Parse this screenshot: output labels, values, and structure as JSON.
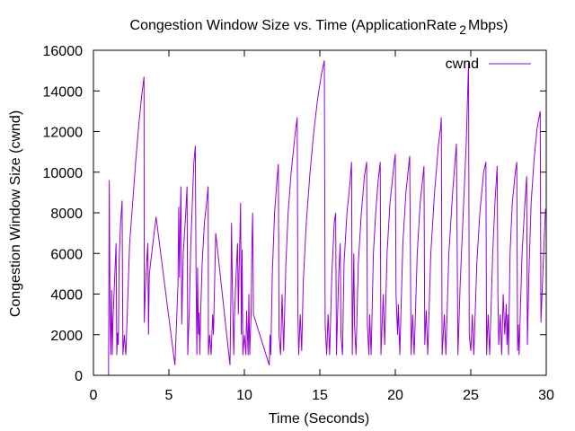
{
  "chart_data": {
    "type": "line",
    "title": "Congestion Window Size vs. Time (ApplicationRate",
    "title_subscript": "2",
    "title_suffix": "Mbps)",
    "xlabel": "Time (Seconds)",
    "ylabel": "Congestion Window Size (cwnd)",
    "xlim": [
      0,
      30
    ],
    "ylim": [
      0,
      16000
    ],
    "x_ticks": [
      "0",
      "5",
      "10",
      "15",
      "20",
      "25",
      "30"
    ],
    "y_ticks": [
      "0",
      "2000",
      "4000",
      "6000",
      "8000",
      "10000",
      "12000",
      "14000",
      "16000"
    ],
    "grid": false,
    "legend_position": "top-right",
    "series": [
      {
        "name": "cwnd",
        "color": "#9400d3",
        "points": [
          [
            1.0,
            0
          ],
          [
            1.05,
            9600
          ],
          [
            1.1,
            2900
          ],
          [
            1.15,
            1000
          ],
          [
            1.2,
            4200
          ],
          [
            1.25,
            1000
          ],
          [
            1.3,
            2800
          ],
          [
            1.5,
            6500
          ],
          [
            1.55,
            1000
          ],
          [
            1.6,
            2100
          ],
          [
            1.65,
            1500
          ],
          [
            1.7,
            5600
          ],
          [
            1.8,
            7500
          ],
          [
            1.9,
            8600
          ],
          [
            1.95,
            1000
          ],
          [
            2.05,
            2000
          ],
          [
            2.15,
            1000
          ],
          [
            2.4,
            6500
          ],
          [
            2.65,
            9000
          ],
          [
            2.8,
            10500
          ],
          [
            3.0,
            12300
          ],
          [
            3.2,
            13800
          ],
          [
            3.35,
            14700
          ],
          [
            3.37,
            2600
          ],
          [
            3.45,
            4500
          ],
          [
            3.6,
            6500
          ],
          [
            3.65,
            2000
          ],
          [
            3.7,
            5000
          ],
          [
            4.15,
            7800
          ],
          [
            5.4,
            500
          ],
          [
            5.6,
            4500
          ],
          [
            5.65,
            8300
          ],
          [
            5.7,
            4800
          ],
          [
            5.75,
            7500
          ],
          [
            5.8,
            9300
          ],
          [
            5.85,
            2500
          ],
          [
            5.95,
            6000
          ],
          [
            6.1,
            7800
          ],
          [
            6.2,
            9300
          ],
          [
            6.25,
            1000
          ],
          [
            6.35,
            3200
          ],
          [
            6.45,
            6500
          ],
          [
            6.55,
            8400
          ],
          [
            6.65,
            10400
          ],
          [
            6.75,
            11300
          ],
          [
            6.8,
            5000
          ],
          [
            6.85,
            1000
          ],
          [
            6.9,
            5300
          ],
          [
            6.95,
            2000
          ],
          [
            7.0,
            3100
          ],
          [
            7.05,
            1000
          ],
          [
            7.1,
            3000
          ],
          [
            7.2,
            5500
          ],
          [
            7.35,
            7500
          ],
          [
            7.5,
            8500
          ],
          [
            7.6,
            9300
          ],
          [
            7.62,
            1000
          ],
          [
            7.7,
            2000
          ],
          [
            7.8,
            1000
          ],
          [
            7.9,
            3000
          ],
          [
            7.95,
            2000
          ],
          [
            8.1,
            7000
          ],
          [
            9.05,
            500
          ],
          [
            9.1,
            3500
          ],
          [
            9.15,
            7500
          ],
          [
            9.2,
            4500
          ],
          [
            9.3,
            1000
          ],
          [
            9.35,
            3000
          ],
          [
            9.45,
            5000
          ],
          [
            9.55,
            6500
          ],
          [
            9.6,
            3000
          ],
          [
            9.65,
            5000
          ],
          [
            9.75,
            8500
          ],
          [
            9.8,
            2000
          ],
          [
            9.85,
            6200
          ],
          [
            9.9,
            1000
          ],
          [
            10.0,
            2000
          ],
          [
            10.1,
            1000
          ],
          [
            10.15,
            3200
          ],
          [
            10.25,
            1000
          ],
          [
            10.3,
            4000
          ],
          [
            10.35,
            1000
          ],
          [
            10.45,
            3200
          ],
          [
            10.5,
            6500
          ],
          [
            10.55,
            8000
          ],
          [
            10.6,
            3000
          ],
          [
            11.65,
            500
          ],
          [
            11.7,
            2000
          ],
          [
            11.75,
            1000
          ],
          [
            11.85,
            5000
          ],
          [
            12.0,
            8000
          ],
          [
            12.15,
            9500
          ],
          [
            12.25,
            10400
          ],
          [
            12.3,
            2000
          ],
          [
            12.4,
            1000
          ],
          [
            12.5,
            4000
          ],
          [
            12.6,
            1200
          ],
          [
            12.75,
            5500
          ],
          [
            12.9,
            8000
          ],
          [
            13.1,
            10000
          ],
          [
            13.35,
            11800
          ],
          [
            13.5,
            12700
          ],
          [
            13.55,
            3000
          ],
          [
            13.6,
            1000
          ],
          [
            13.7,
            3000
          ],
          [
            13.8,
            1200
          ],
          [
            13.9,
            4500
          ],
          [
            14.1,
            7500
          ],
          [
            14.35,
            10000
          ],
          [
            14.6,
            12000
          ],
          [
            14.85,
            13600
          ],
          [
            15.1,
            14800
          ],
          [
            15.3,
            15500
          ],
          [
            15.35,
            2500
          ],
          [
            15.45,
            1000
          ],
          [
            15.55,
            3000
          ],
          [
            15.65,
            1000
          ],
          [
            15.8,
            5000
          ],
          [
            15.95,
            7500
          ],
          [
            16.05,
            8000
          ],
          [
            16.1,
            1000
          ],
          [
            16.25,
            5000
          ],
          [
            16.35,
            6500
          ],
          [
            16.4,
            2000
          ],
          [
            16.5,
            1000
          ],
          [
            16.6,
            5500
          ],
          [
            16.8,
            8000
          ],
          [
            17.0,
            9500
          ],
          [
            17.1,
            10500
          ],
          [
            17.15,
            1000
          ],
          [
            17.25,
            6000
          ],
          [
            17.3,
            2500
          ],
          [
            17.4,
            1000
          ],
          [
            17.55,
            5500
          ],
          [
            17.75,
            8000
          ],
          [
            17.95,
            9800
          ],
          [
            18.1,
            10500
          ],
          [
            18.15,
            2500
          ],
          [
            18.25,
            1000
          ],
          [
            18.3,
            3000
          ],
          [
            18.4,
            1000
          ],
          [
            18.55,
            6000
          ],
          [
            18.7,
            8000
          ],
          [
            18.85,
            9500
          ],
          [
            19.0,
            10500
          ],
          [
            19.05,
            1000
          ],
          [
            19.2,
            4000
          ],
          [
            19.3,
            1500
          ],
          [
            19.45,
            6000
          ],
          [
            19.65,
            8500
          ],
          [
            19.9,
            10300
          ],
          [
            20.0,
            10900
          ],
          [
            20.05,
            4000
          ],
          [
            20.15,
            2000
          ],
          [
            20.2,
            3500
          ],
          [
            20.3,
            1000
          ],
          [
            20.5,
            6500
          ],
          [
            20.7,
            9000
          ],
          [
            20.95,
            10800
          ],
          [
            21.05,
            1000
          ],
          [
            21.15,
            3000
          ],
          [
            21.25,
            1000
          ],
          [
            21.45,
            6000
          ],
          [
            21.65,
            8500
          ],
          [
            21.9,
            10300
          ],
          [
            21.95,
            1500
          ],
          [
            22.05,
            3200
          ],
          [
            22.15,
            1000
          ],
          [
            22.35,
            6000
          ],
          [
            22.6,
            9000
          ],
          [
            22.85,
            11300
          ],
          [
            23.0,
            12200
          ],
          [
            23.05,
            12700
          ],
          [
            23.1,
            1000
          ],
          [
            23.25,
            3000
          ],
          [
            23.35,
            1000
          ],
          [
            23.55,
            6000
          ],
          [
            23.8,
            9000
          ],
          [
            24.05,
            11400
          ],
          [
            24.15,
            1000
          ],
          [
            24.3,
            4500
          ],
          [
            24.5,
            8000
          ],
          [
            24.7,
            11500
          ],
          [
            24.85,
            15400
          ],
          [
            24.9,
            2000
          ],
          [
            25.0,
            1200
          ],
          [
            25.1,
            3000
          ],
          [
            25.2,
            1000
          ],
          [
            25.4,
            5500
          ],
          [
            25.6,
            8000
          ],
          [
            25.85,
            10000
          ],
          [
            26.0,
            10500
          ],
          [
            26.05,
            1000
          ],
          [
            26.15,
            3000
          ],
          [
            26.25,
            1000
          ],
          [
            26.45,
            6000
          ],
          [
            26.6,
            8500
          ],
          [
            26.75,
            10300
          ],
          [
            26.8,
            4000
          ],
          [
            26.85,
            1500
          ],
          [
            26.95,
            3000
          ],
          [
            27.05,
            1000
          ],
          [
            27.15,
            4000
          ],
          [
            27.25,
            2000
          ],
          [
            27.35,
            3500
          ],
          [
            27.4,
            1500
          ],
          [
            27.45,
            3000
          ],
          [
            27.5,
            1000
          ],
          [
            27.6,
            6000
          ],
          [
            27.75,
            8500
          ],
          [
            27.95,
            10000
          ],
          [
            28.05,
            10500
          ],
          [
            28.1,
            1200
          ],
          [
            28.15,
            2500
          ],
          [
            28.2,
            1000
          ],
          [
            28.3,
            3500
          ],
          [
            28.4,
            6000
          ],
          [
            28.55,
            8000
          ],
          [
            28.7,
            9800
          ],
          [
            28.75,
            1500
          ],
          [
            28.85,
            5000
          ],
          [
            29.0,
            8500
          ],
          [
            29.2,
            10700
          ],
          [
            29.4,
            12200
          ],
          [
            29.6,
            13000
          ],
          [
            29.65,
            2600
          ],
          [
            29.75,
            4500
          ],
          [
            29.85,
            6500
          ],
          [
            29.95,
            8200
          ]
        ]
      }
    ]
  }
}
